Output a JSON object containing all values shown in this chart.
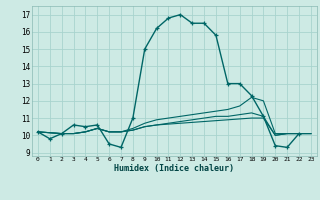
{
  "xlabel": "Humidex (Indice chaleur)",
  "background_color": "#cdeae4",
  "grid_color": "#a8d4ce",
  "line_color": "#006666",
  "xlim": [
    -0.5,
    23.5
  ],
  "ylim": [
    8.8,
    17.5
  ],
  "xticks": [
    0,
    1,
    2,
    3,
    4,
    5,
    6,
    7,
    8,
    9,
    10,
    11,
    12,
    13,
    14,
    15,
    16,
    17,
    18,
    19,
    20,
    21,
    22,
    23
  ],
  "yticks": [
    9,
    10,
    11,
    12,
    13,
    14,
    15,
    16,
    17
  ],
  "lines": [
    {
      "x": [
        0,
        1,
        2,
        3,
        4,
        5,
        6,
        7,
        8,
        9,
        10,
        11,
        12,
        13,
        14,
        15,
        16,
        17,
        18,
        19,
        20,
        21,
        22
      ],
      "y": [
        10.2,
        9.8,
        10.1,
        10.6,
        10.5,
        10.6,
        9.5,
        9.3,
        11.0,
        15.0,
        16.2,
        16.8,
        17.0,
        16.5,
        16.5,
        15.8,
        13.0,
        13.0,
        12.3,
        11.1,
        9.4,
        9.3,
        10.1
      ],
      "marker": true,
      "lw": 1.0
    },
    {
      "x": [
        0,
        2,
        3,
        4,
        5,
        6,
        7,
        8,
        9,
        10,
        11,
        12,
        13,
        14,
        15,
        16,
        17,
        18,
        19,
        20,
        21,
        22,
        23
      ],
      "y": [
        10.2,
        10.1,
        10.1,
        10.2,
        10.4,
        10.2,
        10.2,
        10.4,
        10.7,
        10.9,
        11.0,
        11.1,
        11.2,
        11.3,
        11.4,
        11.5,
        11.7,
        12.2,
        12.0,
        10.1,
        10.1,
        10.1,
        10.1
      ],
      "marker": false,
      "lw": 0.8
    },
    {
      "x": [
        0,
        2,
        3,
        4,
        5,
        6,
        7,
        8,
        9,
        10,
        11,
        12,
        13,
        14,
        15,
        16,
        17,
        18,
        19,
        20,
        21,
        22,
        23
      ],
      "y": [
        10.2,
        10.1,
        10.1,
        10.2,
        10.4,
        10.2,
        10.2,
        10.3,
        10.5,
        10.6,
        10.7,
        10.8,
        10.9,
        11.0,
        11.1,
        11.1,
        11.2,
        11.3,
        11.1,
        10.0,
        10.1,
        10.1,
        10.1
      ],
      "marker": false,
      "lw": 0.8
    },
    {
      "x": [
        0,
        2,
        3,
        4,
        5,
        6,
        7,
        8,
        9,
        10,
        11,
        12,
        13,
        14,
        15,
        16,
        17,
        18,
        19,
        20,
        21,
        22,
        23
      ],
      "y": [
        10.2,
        10.1,
        10.1,
        10.2,
        10.4,
        10.2,
        10.2,
        10.3,
        10.5,
        10.6,
        10.65,
        10.7,
        10.75,
        10.8,
        10.85,
        10.9,
        10.95,
        11.0,
        11.0,
        10.0,
        10.1,
        10.1,
        10.1
      ],
      "marker": false,
      "lw": 0.8
    }
  ]
}
